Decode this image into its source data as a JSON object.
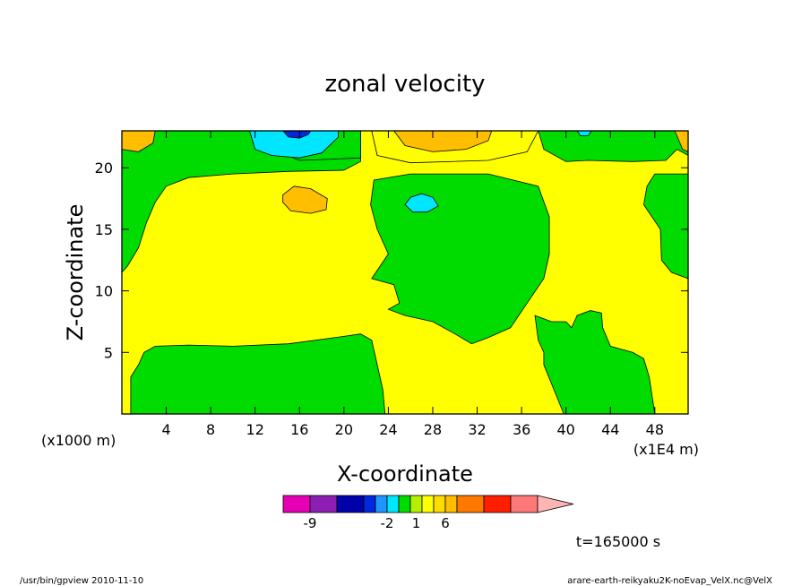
{
  "chart_data": {
    "type": "heatmap",
    "title": "zonal velocity",
    "xlabel": "X-coordinate",
    "ylabel": "Z-coordinate",
    "x_units_label": "(x1E4 m)",
    "y_units_label": "(x1000 m)",
    "x_ticks": [
      4,
      8,
      12,
      16,
      20,
      24,
      28,
      32,
      36,
      40,
      44,
      48
    ],
    "y_ticks": [
      5,
      10,
      15,
      20
    ],
    "xlim": [
      0,
      51
    ],
    "ylim": [
      0,
      23
    ],
    "time_label": "t=165000 s",
    "colorbar": {
      "colors": [
        "#e600b4",
        "#8c1eb4",
        "#0000aa",
        "#0028dc",
        "#1e96ff",
        "#00e6ff",
        "#00dc00",
        "#b4f000",
        "#ffff00",
        "#ffdc00",
        "#ffbe00",
        "#ff7800",
        "#ff1e00",
        "#ff7878",
        "#ffb4b4"
      ],
      "tick_labels": [
        {
          "text": "-9",
          "index": 1
        },
        {
          "text": "-2",
          "index": 5
        },
        {
          "text": "1",
          "index": 7.5
        },
        {
          "text": "6",
          "index": 10
        }
      ]
    },
    "regions": [
      {
        "name": "green-left-upper",
        "color": "#00dc00",
        "points": [
          [
            0,
            11.5
          ],
          [
            0.5,
            12
          ],
          [
            1.5,
            13.5
          ],
          [
            2.2,
            15.5
          ],
          [
            3,
            17.2
          ],
          [
            4,
            18.5
          ],
          [
            6,
            19.2
          ],
          [
            10,
            19.5
          ],
          [
            15,
            19.7
          ],
          [
            20,
            19.8
          ],
          [
            21.5,
            20.5
          ],
          [
            21.5,
            23
          ],
          [
            0,
            23
          ]
        ]
      },
      {
        "name": "green-lower-left",
        "color": "#00dc00",
        "points": [
          [
            0.8,
            0
          ],
          [
            0.8,
            3
          ],
          [
            1.5,
            4
          ],
          [
            2,
            5
          ],
          [
            3,
            5.5
          ],
          [
            6,
            5.6
          ],
          [
            10,
            5.5
          ],
          [
            15,
            5.7
          ],
          [
            20,
            6.3
          ],
          [
            21.5,
            6.5
          ],
          [
            22.5,
            6
          ],
          [
            23.5,
            2
          ],
          [
            23.7,
            0
          ]
        ]
      },
      {
        "name": "green-center",
        "color": "#00dc00",
        "points": [
          [
            22.7,
            19
          ],
          [
            22.4,
            17
          ],
          [
            23,
            15
          ],
          [
            24,
            13
          ],
          [
            22.5,
            11
          ],
          [
            24.5,
            10.5
          ],
          [
            25,
            9
          ],
          [
            24,
            8.5
          ],
          [
            25.5,
            8
          ],
          [
            28,
            7.5
          ],
          [
            30,
            6.5
          ],
          [
            31.5,
            5.7
          ],
          [
            33,
            6.2
          ],
          [
            35,
            7
          ],
          [
            36.5,
            9
          ],
          [
            38,
            11
          ],
          [
            38.5,
            13
          ],
          [
            38.5,
            16
          ],
          [
            37.5,
            18.5
          ],
          [
            33,
            19.5
          ],
          [
            26,
            19.5
          ]
        ]
      },
      {
        "name": "green-lower-right",
        "color": "#00dc00",
        "points": [
          [
            37.5,
            6
          ],
          [
            37.2,
            8
          ],
          [
            38.7,
            7.5
          ],
          [
            40,
            7.5
          ],
          [
            40.5,
            7
          ],
          [
            41,
            8
          ],
          [
            42.2,
            8.4
          ],
          [
            43.2,
            8.2
          ],
          [
            43.3,
            7
          ],
          [
            44,
            5.5
          ],
          [
            46,
            5
          ],
          [
            47,
            4.5
          ],
          [
            47.5,
            3
          ],
          [
            48,
            0
          ],
          [
            39.8,
            0
          ],
          [
            38,
            4
          ],
          [
            38,
            5
          ]
        ]
      },
      {
        "name": "green-top-right",
        "color": "#00dc00",
        "points": [
          [
            37.5,
            23
          ],
          [
            38,
            21.5
          ],
          [
            40,
            20.5
          ],
          [
            42,
            20.6
          ],
          [
            46,
            20.5
          ],
          [
            49,
            20.6
          ],
          [
            50,
            21.5
          ],
          [
            51,
            21
          ],
          [
            51,
            23
          ]
        ]
      },
      {
        "name": "green-right-edge",
        "color": "#00dc00",
        "points": [
          [
            51,
            11
          ],
          [
            49.5,
            11.5
          ],
          [
            48.6,
            12.5
          ],
          [
            48.5,
            15
          ],
          [
            47,
            17
          ],
          [
            47.3,
            18.5
          ],
          [
            48,
            19.5
          ],
          [
            51,
            19.5
          ]
        ]
      },
      {
        "name": "green-top-middle",
        "color": "#00dc00",
        "points": [
          [
            12,
            23
          ],
          [
            13.5,
            21.5
          ],
          [
            16,
            20.6
          ],
          [
            19,
            20.7
          ],
          [
            21.5,
            20.8
          ],
          [
            21.5,
            23
          ]
        ]
      },
      {
        "name": "yellow-top-middle-band",
        "color": "#ffff00",
        "points": [
          [
            22.5,
            23
          ],
          [
            23,
            21
          ],
          [
            26,
            20.4
          ],
          [
            33,
            20.6
          ],
          [
            36.5,
            21.3
          ],
          [
            37.5,
            23
          ]
        ]
      },
      {
        "name": "orange-top-left",
        "color": "#ffbe00",
        "points": [
          [
            0,
            23
          ],
          [
            0,
            21.5
          ],
          [
            1.5,
            21.3
          ],
          [
            2.8,
            22
          ],
          [
            3,
            23
          ]
        ]
      },
      {
        "name": "orange-top-center",
        "color": "#ffbe00",
        "points": [
          [
            24.5,
            23
          ],
          [
            25.5,
            21.8
          ],
          [
            28,
            21.3
          ],
          [
            31,
            21.5
          ],
          [
            33,
            22.2
          ],
          [
            33.3,
            23
          ]
        ]
      },
      {
        "name": "orange-top-right",
        "color": "#ffbe00",
        "points": [
          [
            49.8,
            23
          ],
          [
            50.5,
            21.5
          ],
          [
            51,
            21.3
          ],
          [
            51,
            23
          ]
        ]
      },
      {
        "name": "orange-blob",
        "color": "#ffbe00",
        "points": [
          [
            14.5,
            17.8
          ],
          [
            15.5,
            18.5
          ],
          [
            17,
            18.3
          ],
          [
            18.5,
            17.5
          ],
          [
            18.4,
            16.6
          ],
          [
            17,
            16.3
          ],
          [
            15.2,
            16.5
          ],
          [
            14.5,
            17.2
          ]
        ]
      },
      {
        "name": "cyan-top",
        "color": "#00e6ff",
        "points": [
          [
            11.5,
            23
          ],
          [
            12,
            21.5
          ],
          [
            13.5,
            21
          ],
          [
            16,
            20.8
          ],
          [
            18,
            21.2
          ],
          [
            19.5,
            22.5
          ],
          [
            19.5,
            23
          ]
        ]
      },
      {
        "name": "darkblue-top",
        "color": "#0028dc",
        "points": [
          [
            14.5,
            23
          ],
          [
            15,
            22.5
          ],
          [
            16,
            22.4
          ],
          [
            16.8,
            22.7
          ],
          [
            17,
            23
          ]
        ]
      },
      {
        "name": "cyan-blob",
        "color": "#00e6ff",
        "points": [
          [
            25.5,
            17
          ],
          [
            26,
            17.6
          ],
          [
            27,
            17.9
          ],
          [
            28,
            17.6
          ],
          [
            28.5,
            16.9
          ],
          [
            27.5,
            16.4
          ],
          [
            26.2,
            16.4
          ]
        ]
      },
      {
        "name": "cyan-top-right",
        "color": "#00e6ff",
        "points": [
          [
            41,
            23
          ],
          [
            41.3,
            22.6
          ],
          [
            42,
            22.6
          ],
          [
            42.3,
            23
          ]
        ]
      }
    ],
    "grid": false
  },
  "footer": {
    "left": "/usr/bin/gpview  2010-11-10",
    "right": "arare-earth-reikyaku2K-noEvap_VelX.nc@VelX"
  }
}
